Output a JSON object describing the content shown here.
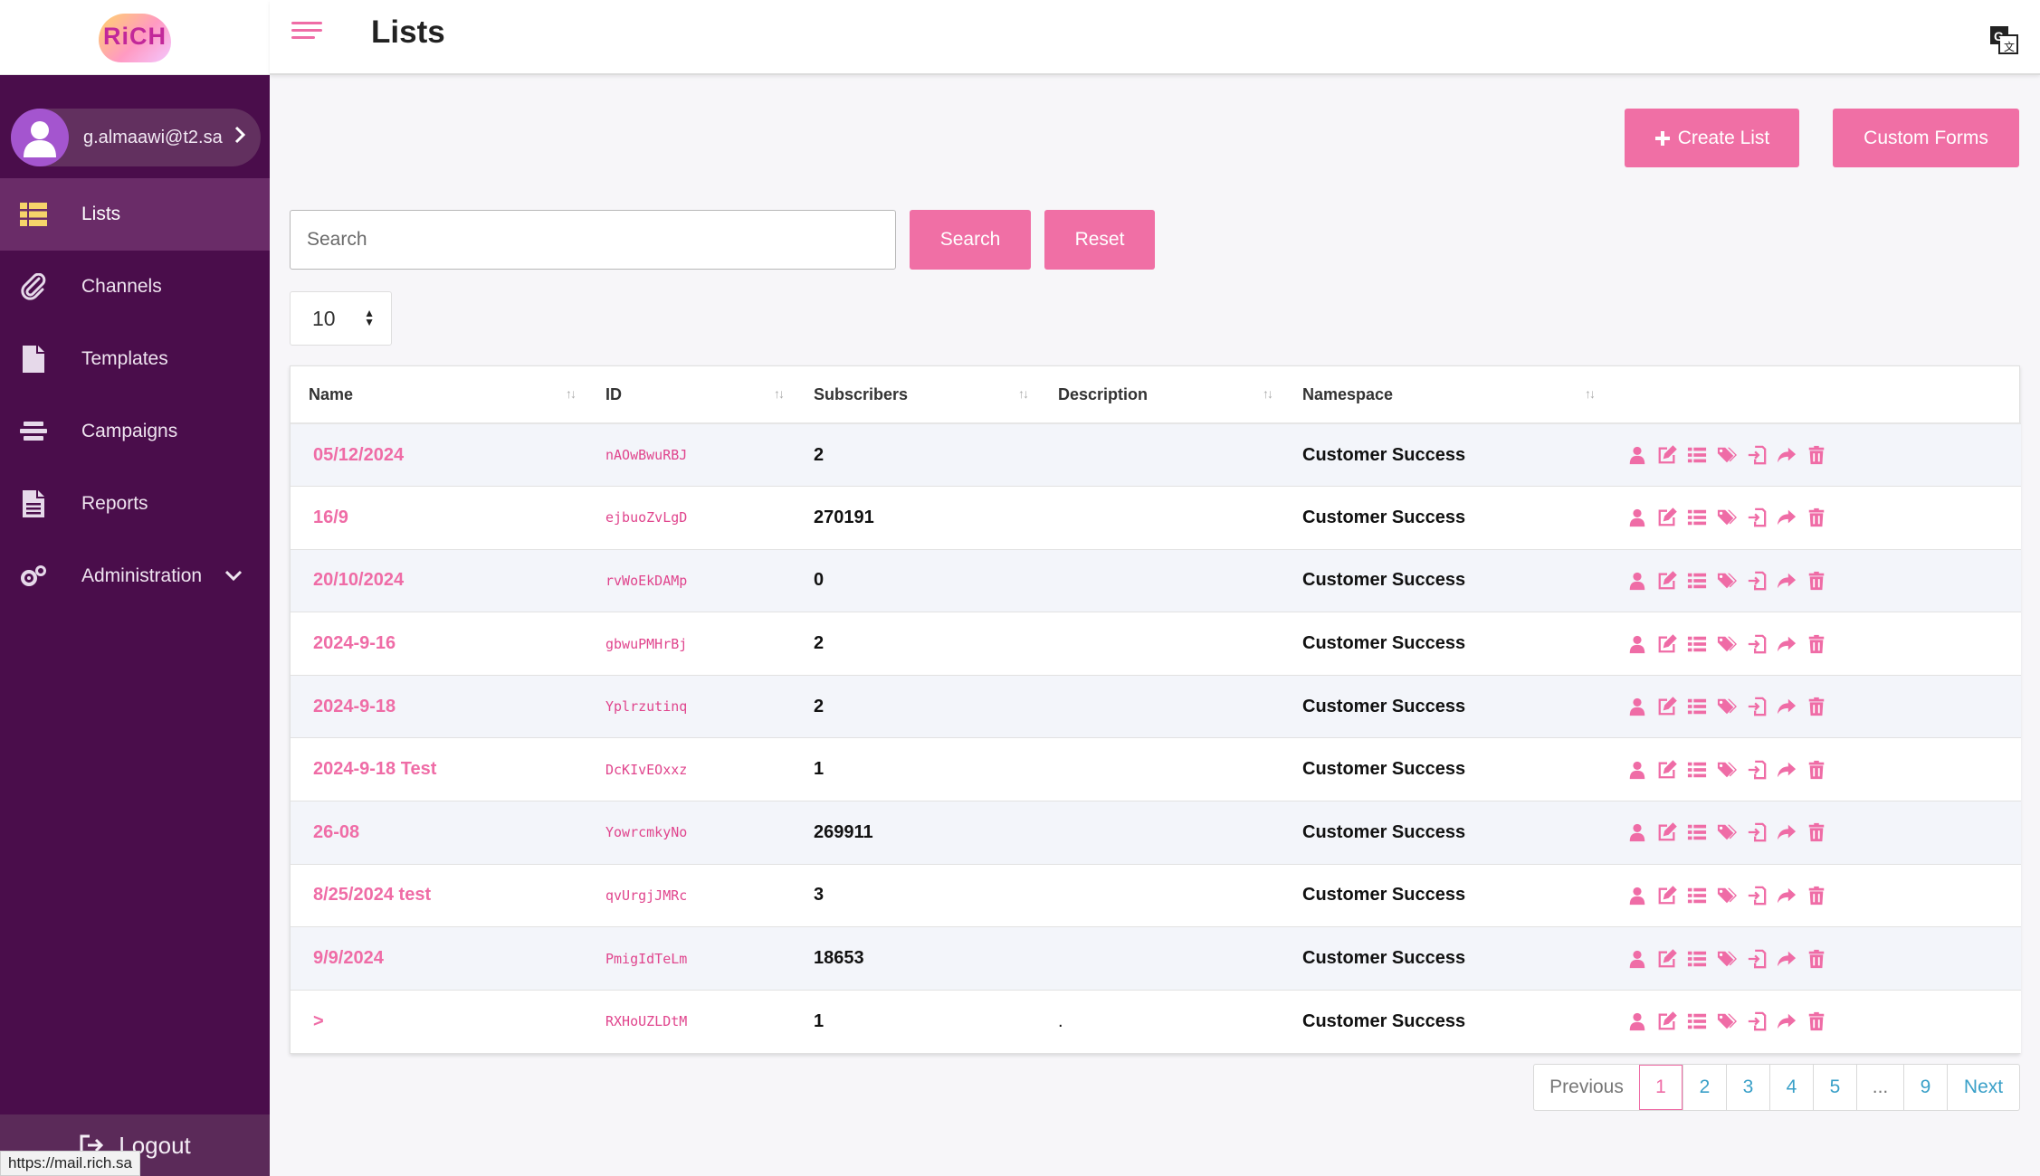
{
  "app": {
    "logo_text": "RiCH",
    "status_url": "https://mail.rich.sa"
  },
  "header": {
    "title": "Lists"
  },
  "user": {
    "email": "g.almaawi@t2.sa"
  },
  "sidebar": {
    "items": [
      {
        "label": "Lists",
        "icon": "list-icon",
        "active": true
      },
      {
        "label": "Channels",
        "icon": "paperclip-icon"
      },
      {
        "label": "Templates",
        "icon": "file-icon"
      },
      {
        "label": "Campaigns",
        "icon": "campaigns-icon"
      },
      {
        "label": "Reports",
        "icon": "report-icon"
      },
      {
        "label": "Administration",
        "icon": "gears-icon",
        "expandable": true
      }
    ],
    "logout_label": "Logout"
  },
  "toolbar": {
    "create_label": "Create List",
    "forms_label": "Custom Forms"
  },
  "search": {
    "placeholder": "Search",
    "value": "",
    "search_label": "Search",
    "reset_label": "Reset"
  },
  "per_page": {
    "value": "10"
  },
  "table": {
    "columns": [
      "Name",
      "ID",
      "Subscribers",
      "Description",
      "Namespace"
    ],
    "rows": [
      {
        "name": "05/12/2024",
        "id": "nAOwBwuRBJ",
        "subscribers": "2",
        "description": "",
        "namespace": "Customer Success"
      },
      {
        "name": "16/9",
        "id": "ejbuoZvLgD",
        "subscribers": "270191",
        "description": "",
        "namespace": "Customer Success"
      },
      {
        "name": "20/10/2024",
        "id": "rvWoEkDAMp",
        "subscribers": "0",
        "description": "",
        "namespace": "Customer Success"
      },
      {
        "name": "2024-9-16",
        "id": "gbwuPMHrBj",
        "subscribers": "2",
        "description": "",
        "namespace": "Customer Success"
      },
      {
        "name": "2024-9-18",
        "id": "Yplrzutinq",
        "subscribers": "2",
        "description": "",
        "namespace": "Customer Success"
      },
      {
        "name": "2024-9-18 Test",
        "id": "DcKIvEOxxz",
        "subscribers": "1",
        "description": "",
        "namespace": "Customer Success"
      },
      {
        "name": "26-08",
        "id": "YowrcmkyNo",
        "subscribers": "269911",
        "description": "",
        "namespace": "Customer Success"
      },
      {
        "name": "8/25/2024 test",
        "id": "qvUrgjJMRc",
        "subscribers": "3",
        "description": "",
        "namespace": "Customer Success"
      },
      {
        "name": "9/9/2024",
        "id": "PmigIdTeLm",
        "subscribers": "18653",
        "description": "",
        "namespace": "Customer Success"
      },
      {
        "name": ">",
        "id": "RXHoUZLDtM",
        "subscribers": "1",
        "description": ".",
        "namespace": "Customer Success"
      }
    ],
    "row_actions": [
      "user-icon",
      "edit-icon",
      "list-icon",
      "tags-icon",
      "import-icon",
      "share-icon",
      "trash-icon"
    ]
  },
  "pagination": {
    "previous_label": "Previous",
    "next_label": "Next",
    "pages": [
      "1",
      "2",
      "3",
      "4",
      "5",
      "...",
      "9"
    ],
    "current": "1"
  },
  "colors": {
    "accent": "#ef6ca6",
    "sidebar": "#4a0d4b",
    "sidebar_active": "#6a2c68"
  }
}
